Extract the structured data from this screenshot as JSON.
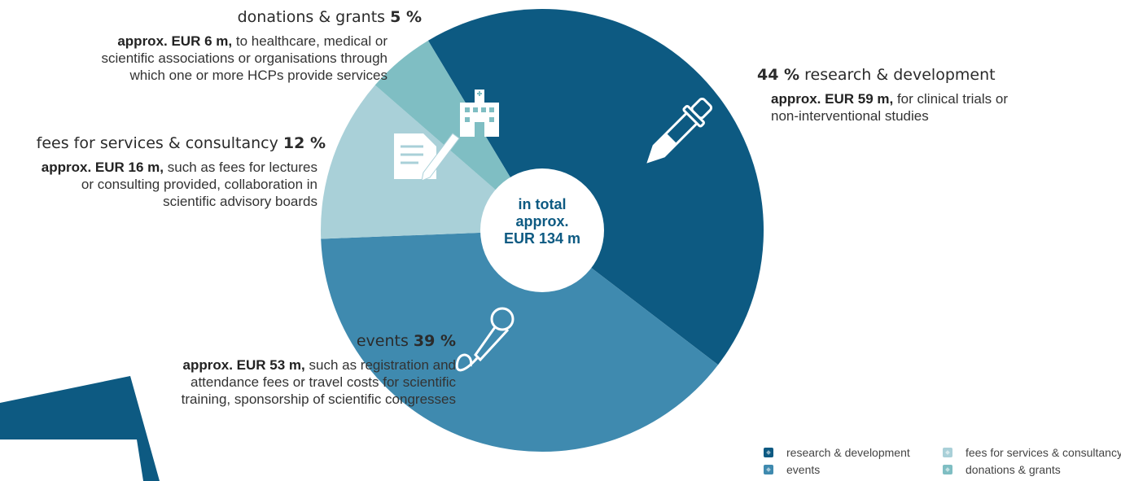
{
  "chart_data": {
    "type": "pie",
    "center_label": [
      "in total",
      "approx.",
      "EUR 134 m"
    ],
    "slices": [
      {
        "name": "research & development",
        "pct": 44,
        "pct_label": "44 %",
        "amount_label": "approx. EUR 59 m,",
        "description": "for clinical trials or non-interventional studies",
        "color": "#0d5a82",
        "icon": "pipette-icon"
      },
      {
        "name": "events",
        "pct": 39,
        "pct_label": "39 %",
        "amount_label": "approx. EUR 53 m,",
        "description": "such as registration and attendance fees or travel costs for scientific training, sponsorship of scientific congresses",
        "color": "#3f8aaf",
        "icon": "microphone-icon"
      },
      {
        "name": "fees for services & consultancy",
        "pct": 12,
        "pct_label": "12 %",
        "amount_label": "approx. EUR 16 m,",
        "description": "such as fees for lectures or consulting provided, collaboration in scientific advisory boards",
        "color": "#a9d0d8",
        "icon": "document-pen-icon"
      },
      {
        "name": "donations & grants",
        "pct": 5,
        "pct_label": "5 %",
        "amount_label": "approx. EUR 6 m,",
        "description": "to healthcare, medical or scientific associations or organisations through which one or more HCPs provide services",
        "color": "#7fbec3",
        "icon": "hospital-icon"
      }
    ],
    "legend": [
      "research & development",
      "fees for services & consultancy",
      "events",
      "donations & grants"
    ]
  },
  "decor_color": "#0d5a82"
}
